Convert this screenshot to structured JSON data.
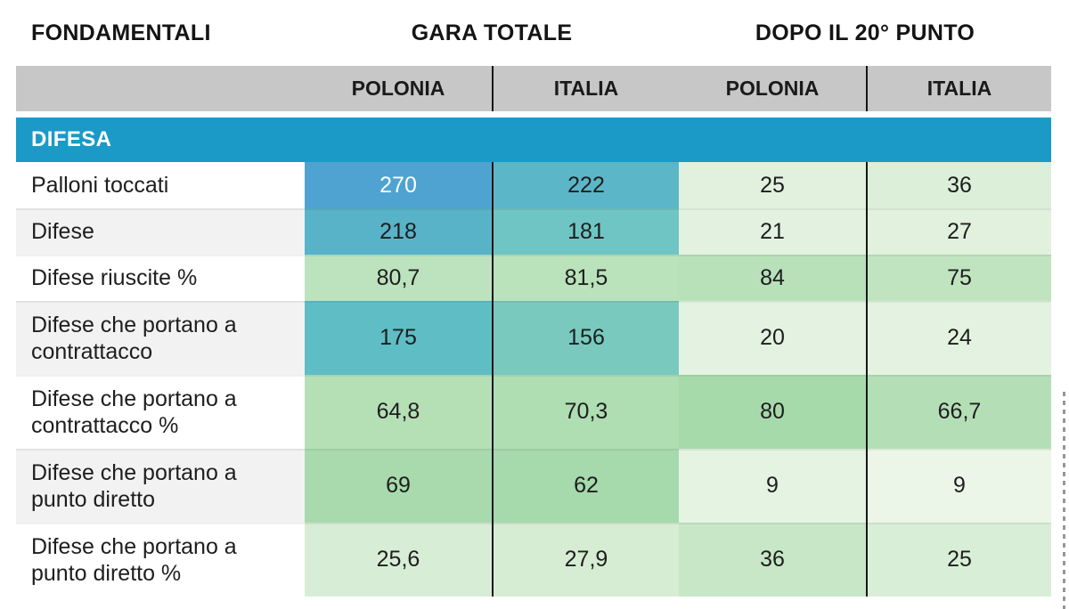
{
  "title_row": {
    "fondamentali": "FONDAMENTALI",
    "gara_totale": "GARA TOTALE",
    "dopo_il_20_punto": "DOPO IL 20° PUNTO"
  },
  "subheader": {
    "bg": "#c7c7c7",
    "cols": [
      "POLONIA",
      "ITALIA",
      "POLONIA",
      "ITALIA"
    ]
  },
  "section": {
    "label": "DIFESA",
    "bg": "#1b9ac8"
  },
  "colors": {
    "pair_separator": "#161616",
    "default_cell_text": "#1e1e1e"
  },
  "rows": [
    {
      "label": "Palloni toccati",
      "label_bg": "#ffffff",
      "cells": [
        {
          "value": "270",
          "bg": "#4fa3d0",
          "fg": "#ffffff"
        },
        {
          "value": "222",
          "bg": "#5bb7c8",
          "fg": "#1e1e1e"
        },
        {
          "value": "25",
          "bg": "#e1f1de",
          "fg": "#1e1e1e"
        },
        {
          "value": "36",
          "bg": "#dcefd9",
          "fg": "#1e1e1e"
        }
      ]
    },
    {
      "label": "Difese",
      "label_bg": "#f2f2f2",
      "cells": [
        {
          "value": "218",
          "bg": "#58b3c9",
          "fg": "#1e1e1e"
        },
        {
          "value": "181",
          "bg": "#6fc5c3",
          "fg": "#1e1e1e"
        },
        {
          "value": "21",
          "bg": "#e3f2e0",
          "fg": "#1e1e1e"
        },
        {
          "value": "27",
          "bg": "#e1f1de",
          "fg": "#1e1e1e"
        }
      ]
    },
    {
      "label": "Difese riuscite %",
      "label_bg": "#ffffff",
      "cells": [
        {
          "value": "80,7",
          "bg": "#bce3bd",
          "fg": "#1e1e1e"
        },
        {
          "value": "81,5",
          "bg": "#bae2bb",
          "fg": "#1e1e1e"
        },
        {
          "value": "84",
          "bg": "#b8e1ba",
          "fg": "#1e1e1e"
        },
        {
          "value": "75",
          "bg": "#c0e4c0",
          "fg": "#1e1e1e"
        }
      ]
    },
    {
      "label": "Difese che portano a contrattacco",
      "label_bg": "#f2f2f2",
      "cells": [
        {
          "value": "175",
          "bg": "#5fbdc5",
          "fg": "#1e1e1e"
        },
        {
          "value": "156",
          "bg": "#79c9bf",
          "fg": "#1e1e1e"
        },
        {
          "value": "20",
          "bg": "#e4f3e1",
          "fg": "#1e1e1e"
        },
        {
          "value": "24",
          "bg": "#e4f3e1",
          "fg": "#1e1e1e"
        }
      ]
    },
    {
      "label": "Difese che portano a contrattacco %",
      "label_bg": "#ffffff",
      "cells": [
        {
          "value": "64,8",
          "bg": "#b5e0b6",
          "fg": "#1e1e1e"
        },
        {
          "value": "70,3",
          "bg": "#aedeb2",
          "fg": "#1e1e1e"
        },
        {
          "value": "80",
          "bg": "#a7daab",
          "fg": "#1e1e1e"
        },
        {
          "value": "66,7",
          "bg": "#b4dfb6",
          "fg": "#1e1e1e"
        }
      ]
    },
    {
      "label": "Difese che portano a punto diretto",
      "label_bg": "#f2f2f2",
      "cells": [
        {
          "value": "69",
          "bg": "#a8daad",
          "fg": "#1e1e1e"
        },
        {
          "value": "62",
          "bg": "#a6d9ab",
          "fg": "#1e1e1e"
        },
        {
          "value": "9",
          "bg": "#e5f3e2",
          "fg": "#1e1e1e"
        },
        {
          "value": "9",
          "bg": "#ebf6e8",
          "fg": "#1e1e1e"
        }
      ]
    },
    {
      "label": "Difese che portano a punto diretto %",
      "label_bg": "#ffffff",
      "cells": [
        {
          "value": "25,6",
          "bg": "#d8edd5",
          "fg": "#1e1e1e"
        },
        {
          "value": "27,9",
          "bg": "#d6ecd3",
          "fg": "#1e1e1e"
        },
        {
          "value": "36",
          "bg": "#c8e7c6",
          "fg": "#1e1e1e"
        },
        {
          "value": "25",
          "bg": "#d9eed6",
          "fg": "#1e1e1e"
        }
      ]
    }
  ]
}
